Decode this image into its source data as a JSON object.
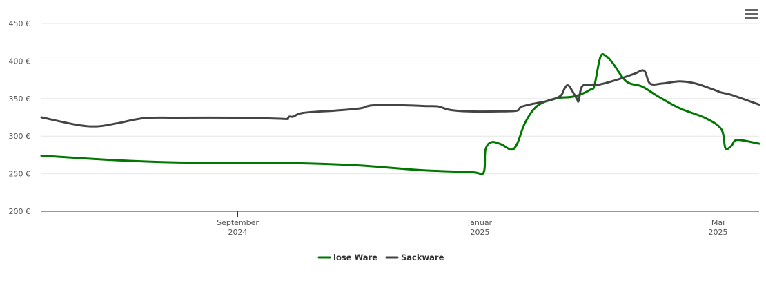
{
  "menu_icon": "hamburger-menu-icon",
  "chart_data": {
    "type": "line",
    "title": "",
    "xlabel": "",
    "ylabel": "",
    "currency": "€",
    "ylim": [
      200,
      450
    ],
    "yticks": [
      200,
      250,
      300,
      350,
      400,
      450
    ],
    "ytick_labels": [
      "200 €",
      "250 €",
      "300 €",
      "350 €",
      "400 €",
      "450 €"
    ],
    "xlim": [
      "2024-05-25",
      "2025-05-22"
    ],
    "xticks": [
      {
        "date": "2024-09-01",
        "label_line1": "September",
        "label_line2": "2024"
      },
      {
        "date": "2025-01-01",
        "label_line1": "Januar",
        "label_line2": "2025"
      },
      {
        "date": "2025-05-01",
        "label_line1": "Mai",
        "label_line2": "2025"
      }
    ],
    "grid": true,
    "legend": "bottom-center",
    "series": [
      {
        "name": "lose Ware",
        "color": "#007700",
        "points": [
          [
            "2024-05-25",
            274
          ],
          [
            "2024-07-01",
            268
          ],
          [
            "2024-08-01",
            265
          ],
          [
            "2024-09-01",
            264.5
          ],
          [
            "2024-10-01",
            264
          ],
          [
            "2024-11-01",
            261
          ],
          [
            "2024-12-01",
            255
          ],
          [
            "2024-12-28",
            252
          ],
          [
            "2025-01-03",
            251.5
          ],
          [
            "2025-01-04",
            282
          ],
          [
            "2025-01-07",
            292
          ],
          [
            "2025-01-12",
            289
          ],
          [
            "2025-01-17",
            282
          ],
          [
            "2025-01-20",
            290
          ],
          [
            "2025-01-24",
            318
          ],
          [
            "2025-01-30",
            340
          ],
          [
            "2025-02-08",
            350
          ],
          [
            "2025-02-18",
            353
          ],
          [
            "2025-02-26",
            362
          ],
          [
            "2025-02-28",
            368
          ],
          [
            "2025-03-03",
            406
          ],
          [
            "2025-03-06",
            406
          ],
          [
            "2025-03-09",
            398
          ],
          [
            "2025-03-16",
            373
          ],
          [
            "2025-03-24",
            366
          ],
          [
            "2025-04-01",
            353
          ],
          [
            "2025-04-12",
            337
          ],
          [
            "2025-04-25",
            324
          ],
          [
            "2025-05-03",
            309
          ],
          [
            "2025-05-05",
            284
          ],
          [
            "2025-05-08",
            287
          ],
          [
            "2025-05-11",
            295
          ],
          [
            "2025-05-22",
            290
          ]
        ]
      },
      {
        "name": "Sackware",
        "color": "#444444",
        "points": [
          [
            "2024-05-25",
            325
          ],
          [
            "2024-06-12",
            315
          ],
          [
            "2024-06-22",
            313
          ],
          [
            "2024-07-02",
            317
          ],
          [
            "2024-07-16",
            324
          ],
          [
            "2024-08-01",
            324.5
          ],
          [
            "2024-09-01",
            324.5
          ],
          [
            "2024-09-24",
            323
          ],
          [
            "2024-09-26",
            323
          ],
          [
            "2024-09-27",
            326
          ],
          [
            "2024-09-29",
            326
          ],
          [
            "2024-10-04",
            331
          ],
          [
            "2024-10-20",
            334
          ],
          [
            "2024-11-02",
            337
          ],
          [
            "2024-11-08",
            341
          ],
          [
            "2024-11-25",
            341
          ],
          [
            "2024-12-05",
            340
          ],
          [
            "2024-12-11",
            339.5
          ],
          [
            "2024-12-17",
            335
          ],
          [
            "2024-12-26",
            333
          ],
          [
            "2025-01-12",
            333
          ],
          [
            "2025-01-20",
            334
          ],
          [
            "2025-01-22",
            339
          ],
          [
            "2025-01-28",
            343
          ],
          [
            "2025-02-06",
            348
          ],
          [
            "2025-02-11",
            354
          ],
          [
            "2025-02-13",
            364
          ],
          [
            "2025-02-15",
            367
          ],
          [
            "2025-02-19",
            350
          ],
          [
            "2025-02-20",
            347
          ],
          [
            "2025-02-22",
            367
          ],
          [
            "2025-03-01",
            368
          ],
          [
            "2025-03-10",
            374
          ],
          [
            "2025-03-20",
            383
          ],
          [
            "2025-03-25",
            387
          ],
          [
            "2025-03-28",
            370
          ],
          [
            "2025-04-03",
            370
          ],
          [
            "2025-04-12",
            373
          ],
          [
            "2025-04-20",
            370
          ],
          [
            "2025-04-28",
            363
          ],
          [
            "2025-05-03",
            358
          ],
          [
            "2025-05-08",
            355
          ],
          [
            "2025-05-22",
            342
          ]
        ]
      }
    ]
  }
}
